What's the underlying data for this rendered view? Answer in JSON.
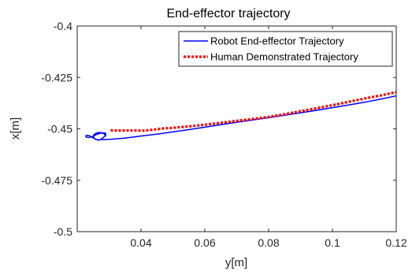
{
  "chart_data": {
    "type": "line",
    "title": "End-effector trajectory",
    "xlabel": "y[m]",
    "ylabel": "x[m]",
    "xlim": [
      0.02,
      0.12
    ],
    "ylim": [
      -0.5,
      -0.4
    ],
    "xticks": [
      0.04,
      0.06,
      0.08,
      0.1,
      0.12
    ],
    "xtick_labels": [
      "0.04",
      "0.06",
      "0.08",
      "0.1",
      "0.12"
    ],
    "yticks": [
      -0.4,
      -0.425,
      -0.45,
      -0.475,
      -0.5
    ],
    "ytick_labels": [
      "-0.4",
      "-0.425",
      "-0.45",
      "-0.475",
      "-0.5"
    ],
    "grid": false,
    "legend_position": "top-right",
    "series": [
      {
        "name": "Robot End-effector Trajectory",
        "color": "#0000FF",
        "style": "solid",
        "x": [
          0.029,
          0.0285,
          0.0275,
          0.0262,
          0.0252,
          0.0251,
          0.0257,
          0.0267,
          0.0275,
          0.0282,
          0.0288,
          0.029,
          0.0287,
          0.0276,
          0.0262,
          0.0248,
          0.0236,
          0.0228,
          0.0227,
          0.0231,
          0.024,
          0.025,
          0.026,
          0.028,
          0.031,
          0.035,
          0.04,
          0.045,
          0.05,
          0.055,
          0.06,
          0.065,
          0.07,
          0.075,
          0.08,
          0.085,
          0.09,
          0.095,
          0.1,
          0.105,
          0.11,
          0.115,
          0.12
        ],
        "y": [
          -0.4537,
          -0.4525,
          -0.4518,
          -0.4519,
          -0.4528,
          -0.4541,
          -0.4551,
          -0.4555,
          -0.455,
          -0.4542,
          -0.4533,
          -0.4525,
          -0.452,
          -0.452,
          -0.4527,
          -0.4537,
          -0.4543,
          -0.454,
          -0.4534,
          -0.4531,
          -0.4535,
          -0.4544,
          -0.4552,
          -0.4553,
          -0.455,
          -0.4545,
          -0.4535,
          -0.4526,
          -0.4515,
          -0.4504,
          -0.4492,
          -0.448,
          -0.4468,
          -0.4457,
          -0.4446,
          -0.4434,
          -0.4422,
          -0.441,
          -0.4397,
          -0.4384,
          -0.4371,
          -0.4356,
          -0.434
        ]
      },
      {
        "name": "Human Demonstrated Trajectory",
        "color": "#FF0000",
        "style": "dotted",
        "x": [
          0.0305,
          0.032,
          0.035,
          0.038,
          0.041,
          0.044,
          0.047,
          0.05,
          0.055,
          0.06,
          0.065,
          0.07,
          0.075,
          0.08,
          0.085,
          0.09,
          0.095,
          0.1,
          0.105,
          0.11,
          0.115,
          0.12
        ],
        "y": [
          -0.4507,
          -0.4508,
          -0.4508,
          -0.4508,
          -0.4509,
          -0.4504,
          -0.4498,
          -0.4495,
          -0.4488,
          -0.448,
          -0.4471,
          -0.4461,
          -0.4452,
          -0.4442,
          -0.4429,
          -0.4414,
          -0.44,
          -0.4385,
          -0.4369,
          -0.4353,
          -0.4338,
          -0.4322
        ]
      }
    ]
  }
}
